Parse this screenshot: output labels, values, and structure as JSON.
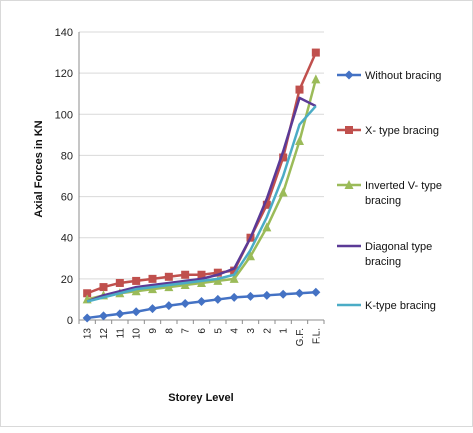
{
  "chart_data": {
    "type": "line",
    "xlabel": "Storey Level",
    "ylabel": "Axial Forces in KN",
    "ylim": [
      0,
      140
    ],
    "yticks": [
      0,
      20,
      40,
      60,
      80,
      100,
      120,
      140
    ],
    "grid": true,
    "legend_position": "right",
    "categories": [
      "13",
      "12",
      "11",
      "10",
      "9",
      "8",
      "7",
      "6",
      "5",
      "4",
      "3",
      "2",
      "1",
      "G.F.",
      "F.L."
    ],
    "series": [
      {
        "name": "Without bracing",
        "color": "#4472c4",
        "marker": "diamond",
        "values": [
          1,
          2,
          3,
          4,
          5.5,
          7,
          8,
          9,
          10,
          11,
          11.5,
          12,
          12.5,
          13,
          13.5
        ]
      },
      {
        "name": "X- type bracing",
        "color": "#c0504d",
        "marker": "square",
        "values": [
          13,
          16,
          18,
          19,
          20,
          21,
          22,
          22,
          23,
          24,
          40,
          56,
          79,
          112,
          130
        ]
      },
      {
        "name": "Inverted V- type bracing",
        "color": "#9bbb59",
        "marker": "triangle",
        "values": [
          10,
          12,
          13,
          14,
          15,
          16,
          17,
          18,
          19,
          20,
          31,
          45,
          62,
          87,
          117
        ]
      },
      {
        "name": "Diagonal type bracing",
        "color": "#5b3a96",
        "marker": "none",
        "values": [
          9,
          12,
          14,
          16,
          17,
          18,
          19,
          20,
          22,
          25,
          40,
          59,
          82,
          108,
          104
        ]
      },
      {
        "name": "K-type bracing",
        "color": "#4bacc6",
        "marker": "none",
        "values": [
          9,
          11,
          13,
          15,
          16,
          17,
          18,
          19,
          20,
          22,
          34,
          50,
          70,
          95,
          104
        ]
      }
    ]
  }
}
